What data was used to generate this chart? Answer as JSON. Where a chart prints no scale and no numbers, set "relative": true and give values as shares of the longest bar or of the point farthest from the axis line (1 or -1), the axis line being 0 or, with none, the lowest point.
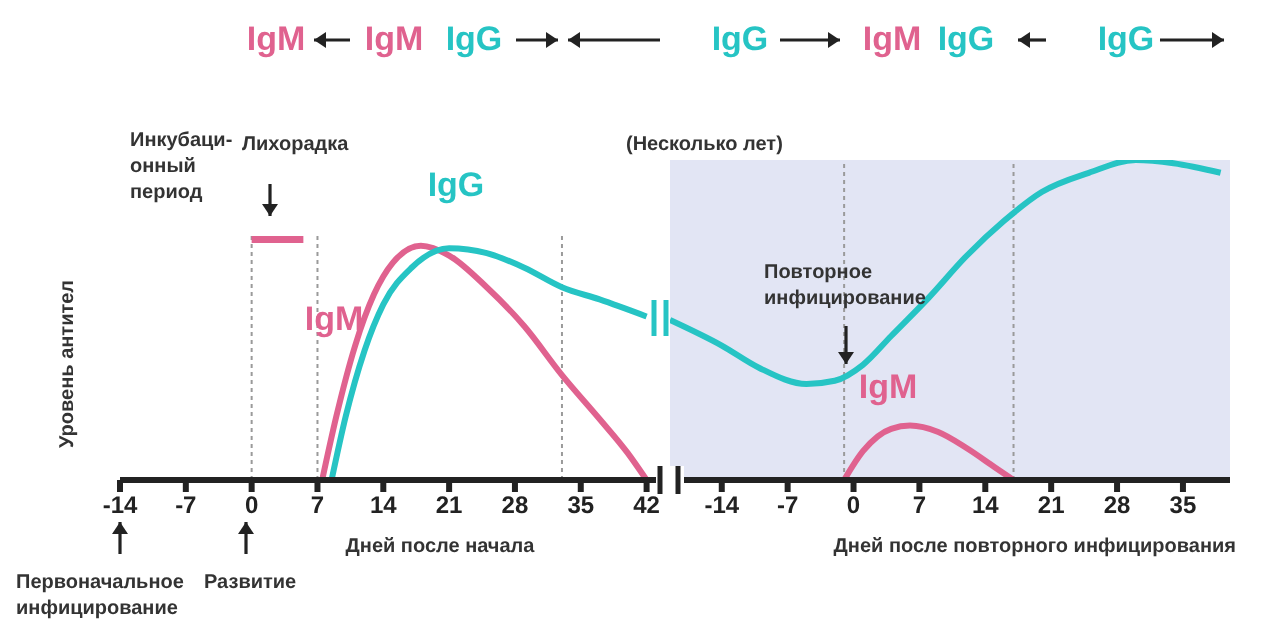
{
  "chart_data": [
    {
      "type": "line",
      "relative": true,
      "xlabel": "Дней после начала",
      "ylabel": "Уровень антител",
      "xlim": [
        -14,
        43
      ],
      "xticks": [
        -14,
        -7,
        0,
        7,
        14,
        21,
        28,
        35,
        42
      ],
      "series": [
        {
          "name": "IgM",
          "color": "#e0628f",
          "x": [
            7.5,
            9,
            11,
            13,
            15,
            18,
            21,
            25,
            29,
            33,
            37,
            40,
            42
          ],
          "values": [
            0,
            0.26,
            0.55,
            0.76,
            0.89,
            0.96,
            0.92,
            0.79,
            0.63,
            0.43,
            0.25,
            0.11,
            0
          ]
        },
        {
          "name": "IgG",
          "color": "#26c4c4",
          "x": [
            8.5,
            10,
            12,
            14,
            17,
            21,
            25,
            29,
            33,
            37,
            42
          ],
          "values": [
            0,
            0.26,
            0.53,
            0.72,
            0.87,
            0.95,
            0.93,
            0.87,
            0.79,
            0.74,
            0.67
          ]
        },
        {
          "type": "line",
          "color": "#e0628f",
          "x": [
            0,
            5.5
          ],
          "values": [
            1,
            1
          ]
        }
      ],
      "ref_lines": [
        {
          "axis": "x",
          "value": 0,
          "color": "#9a9a9a",
          "line_style": "dotted"
        },
        {
          "axis": "x",
          "value": 7,
          "color": "#9a9a9a",
          "line_style": "dotted"
        },
        {
          "axis": "x",
          "value": 33,
          "color": "#9a9a9a",
          "line_style": "dotted"
        }
      ],
      "annotations": [
        "IgM",
        "IgM",
        "IgG",
        "Инкубаци-онный период",
        "Лихорадка",
        "Первоначальное инфицирование",
        "Развитие"
      ]
    },
    {
      "type": "line",
      "relative": true,
      "xlabel": "Дней после повторного инфицирования",
      "xlim": [
        -19.5,
        40
      ],
      "xticks": [
        -14,
        -7,
        0,
        7,
        14,
        21,
        28,
        35
      ],
      "series": [
        {
          "color": "#26c4c4",
          "x": [
            -19.5,
            -14,
            -10,
            -5,
            -2,
            1,
            4,
            8,
            12,
            16,
            20,
            25,
            30,
            34,
            39
          ],
          "values": [
            0.5,
            0.42,
            0.35,
            0.3,
            0.31,
            0.36,
            0.45,
            0.57,
            0.7,
            0.81,
            0.9,
            0.96,
            1,
            0.99,
            0.96
          ]
        },
        {
          "name": "IgM",
          "color": "#e0628f",
          "x": [
            -1,
            1,
            4,
            6,
            9,
            12,
            15,
            17
          ],
          "values": [
            0,
            0.09,
            0.16,
            0.17,
            0.15,
            0.1,
            0.04,
            0
          ]
        }
      ],
      "bands": [
        {
          "axis": "x",
          "from": -19.5,
          "to": 40,
          "color": "#e2e5f4"
        }
      ],
      "ref_lines": [
        {
          "axis": "x",
          "value": -1,
          "color": "#9a9a9a",
          "line_style": "dotted"
        },
        {
          "axis": "x",
          "value": 17,
          "color": "#9a9a9a",
          "line_style": "dotted"
        }
      ],
      "annotations": [
        "IgG",
        "IgM",
        "IgG",
        "IgG",
        "(Несколько лет)",
        "Повторное инфицирование"
      ]
    }
  ]
}
